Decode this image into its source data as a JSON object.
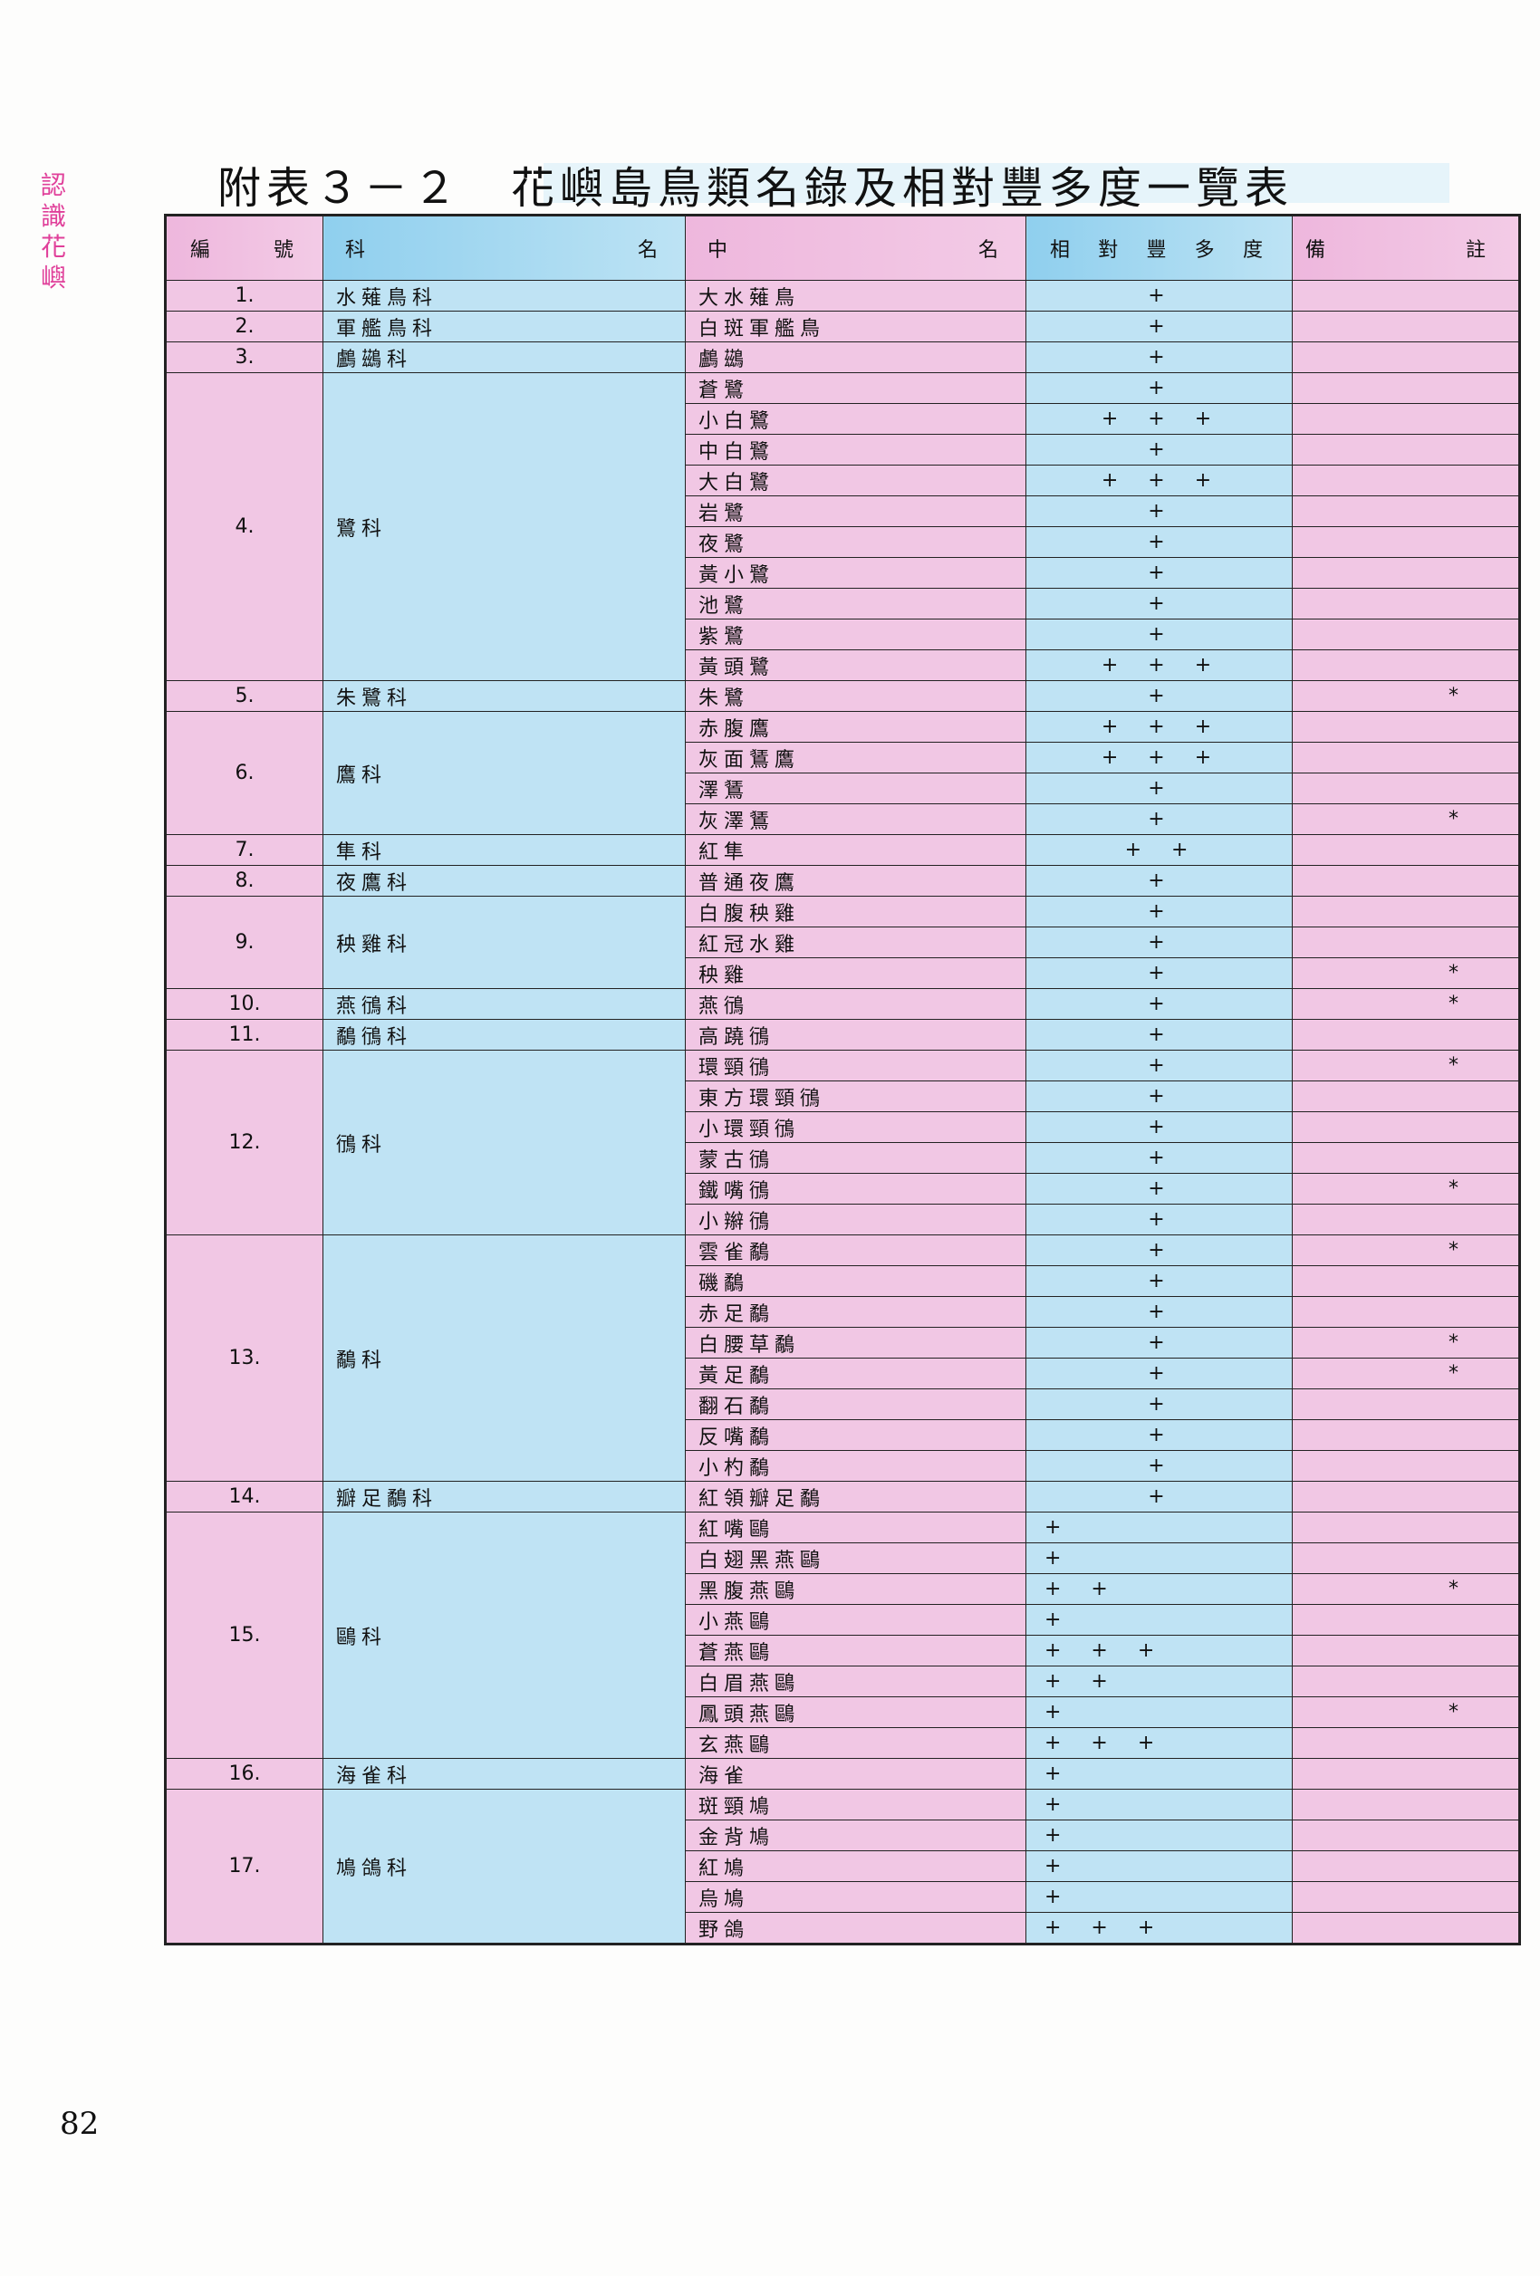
{
  "side_label": "認識花嶼",
  "title": "附表３－２　花嶼島鳥類名錄及相對豐多度一覽表",
  "page_number": "82",
  "table": {
    "headers": [
      "編號",
      "科名",
      "中名",
      "相對豐多度",
      "備註"
    ],
    "groups": [
      {
        "number": "1.",
        "family": "水薙鳥科",
        "species": [
          {
            "name": "大水薙鳥",
            "abundance": "+"
          }
        ]
      },
      {
        "number": "2.",
        "family": "軍艦鳥科",
        "species": [
          {
            "name": "白斑軍艦鳥",
            "abundance": "+"
          }
        ]
      },
      {
        "number": "3.",
        "family": "鸕鷀科",
        "species": [
          {
            "name": "鸕鷀",
            "abundance": "+"
          }
        ]
      },
      {
        "number": "4.",
        "family": "鷺科",
        "species": [
          {
            "name": "蒼鷺",
            "abundance": "+"
          },
          {
            "name": "小白鷺",
            "abundance": "+ + +"
          },
          {
            "name": "中白鷺",
            "abundance": "+"
          },
          {
            "name": "大白鷺",
            "abundance": "+ + +"
          },
          {
            "name": "岩鷺",
            "abundance": "+"
          },
          {
            "name": "夜鷺",
            "abundance": "+"
          },
          {
            "name": "黃小鷺",
            "abundance": "+"
          },
          {
            "name": "池鷺",
            "abundance": "+"
          },
          {
            "name": "紫鷺",
            "abundance": "+"
          },
          {
            "name": "黃頭鷺",
            "abundance": "+ + +"
          }
        ]
      },
      {
        "number": "5.",
        "family": "朱鷺科",
        "species": [
          {
            "name": "朱鷺",
            "abundance": "+",
            "note": "*"
          }
        ]
      },
      {
        "number": "6.",
        "family": "鷹科",
        "species": [
          {
            "name": "赤腹鷹",
            "abundance": "+ + +"
          },
          {
            "name": "灰面鵟鷹",
            "abundance": "+ + +"
          },
          {
            "name": "澤鵟",
            "abundance": "+"
          },
          {
            "name": "灰澤鵟",
            "abundance": "+",
            "note": "*"
          }
        ]
      },
      {
        "number": "7.",
        "family": "隼科",
        "species": [
          {
            "name": "紅隼",
            "abundance": "+ +"
          }
        ]
      },
      {
        "number": "8.",
        "family": "夜鷹科",
        "species": [
          {
            "name": "普通夜鷹",
            "abundance": "+"
          }
        ]
      },
      {
        "number": "9.",
        "family": "秧雞科",
        "species": [
          {
            "name": "白腹秧雞",
            "abundance": "+"
          },
          {
            "name": "紅冠水雞",
            "abundance": "+"
          },
          {
            "name": "秧雞",
            "abundance": "+",
            "note": "*"
          }
        ]
      },
      {
        "number": "10.",
        "family": "燕鴴科",
        "species": [
          {
            "name": "燕鴴",
            "abundance": "+",
            "note": "*"
          }
        ]
      },
      {
        "number": "11.",
        "family": "鷸鴴科",
        "species": [
          {
            "name": "高蹺鴴",
            "abundance": "+"
          }
        ]
      },
      {
        "number": "12.",
        "family": "鴴科",
        "species": [
          {
            "name": "環頸鴴",
            "abundance": "+",
            "note": "*"
          },
          {
            "name": "東方環頸鴴",
            "abundance": "+"
          },
          {
            "name": "小環頸鴴",
            "abundance": "+"
          },
          {
            "name": "蒙古鴴",
            "abundance": "+"
          },
          {
            "name": "鐵嘴鴴",
            "abundance": "+",
            "note": "*"
          },
          {
            "name": "小辮鴴",
            "abundance": "+"
          }
        ]
      },
      {
        "number": "13.",
        "family": "鷸科",
        "species": [
          {
            "name": "雲雀鷸",
            "abundance": "+",
            "note": "*"
          },
          {
            "name": "磯鷸",
            "abundance": "+"
          },
          {
            "name": "赤足鷸",
            "abundance": "+"
          },
          {
            "name": "白腰草鷸",
            "abundance": "+",
            "note": "*"
          },
          {
            "name": "黃足鷸",
            "abundance": "+",
            "note": "*"
          },
          {
            "name": "翻石鷸",
            "abundance": "+"
          },
          {
            "name": "反嘴鷸",
            "abundance": "+"
          },
          {
            "name": "小杓鷸",
            "abundance": "+"
          }
        ]
      },
      {
        "number": "14.",
        "family": "瓣足鷸科",
        "species": [
          {
            "name": "紅領瓣足鷸",
            "abundance": "+"
          }
        ]
      },
      {
        "number": "15.",
        "family": "鷗科",
        "species": [
          {
            "name": "紅嘴鷗",
            "abundance": "+"
          },
          {
            "name": "白翅黑燕鷗",
            "abundance": "+"
          },
          {
            "name": "黑腹燕鷗",
            "abundance": "+ +",
            "note": "*"
          },
          {
            "name": "小燕鷗",
            "abundance": "+"
          },
          {
            "name": "蒼燕鷗",
            "abundance": "+ + +"
          },
          {
            "name": "白眉燕鷗",
            "abundance": "+ +"
          },
          {
            "name": "鳳頭燕鷗",
            "abundance": "+",
            "note": "*"
          },
          {
            "name": "玄燕鷗",
            "abundance": "+ + +"
          }
        ]
      },
      {
        "number": "16.",
        "family": "海雀科",
        "species": [
          {
            "name": "海雀",
            "abundance": "+"
          }
        ]
      },
      {
        "number": "17.",
        "family": "鳩鴿科",
        "species": [
          {
            "name": "斑頸鳩",
            "abundance": "+"
          },
          {
            "name": "金背鳩",
            "abundance": "+"
          },
          {
            "name": "紅鳩",
            "abundance": "+"
          },
          {
            "name": "烏鳩",
            "abundance": "+"
          },
          {
            "name": "野鴿",
            "abundance": "+ + +"
          }
        ]
      }
    ]
  }
}
